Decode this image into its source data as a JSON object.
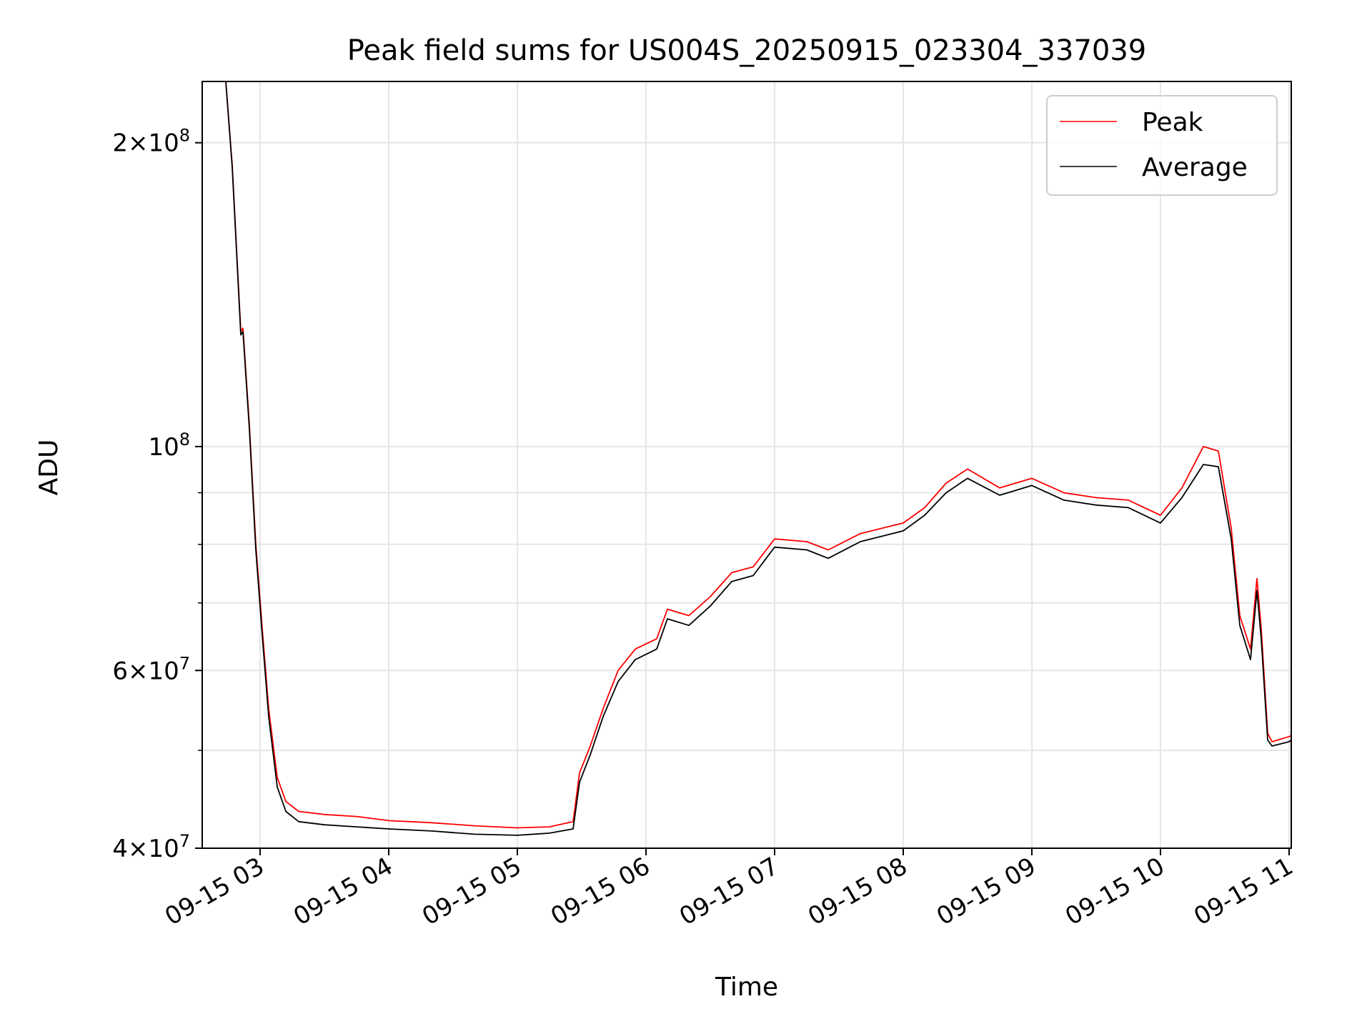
{
  "chart_data": {
    "type": "line",
    "title": "Peak field sums for US004S_20250915_023304_337039",
    "xlabel": "Time",
    "ylabel": "ADU",
    "y_scale": "log",
    "grid": true,
    "legend_position": "top-right",
    "xlim": [
      "2025-09-15 02:33",
      "2025-09-15 11:01"
    ],
    "ylim": [
      40000000,
      230000000
    ],
    "x_ticks": [
      {
        "t": "2025-09-15 03:00",
        "label": "09-15 03"
      },
      {
        "t": "2025-09-15 04:00",
        "label": "09-15 04"
      },
      {
        "t": "2025-09-15 05:00",
        "label": "09-15 05"
      },
      {
        "t": "2025-09-15 06:00",
        "label": "09-15 06"
      },
      {
        "t": "2025-09-15 07:00",
        "label": "09-15 07"
      },
      {
        "t": "2025-09-15 08:00",
        "label": "09-15 08"
      },
      {
        "t": "2025-09-15 09:00",
        "label": "09-15 09"
      },
      {
        "t": "2025-09-15 10:00",
        "label": "09-15 10"
      },
      {
        "t": "2025-09-15 11:00",
        "label": "09-15 11"
      }
    ],
    "y_ticks_major": [
      {
        "v": 40000000,
        "mant": "4",
        "exp": "7"
      },
      {
        "v": 60000000,
        "mant": "6",
        "exp": "7"
      },
      {
        "v": 100000000,
        "mant": "",
        "exp": "8"
      },
      {
        "v": 200000000,
        "mant": "2",
        "exp": "8"
      }
    ],
    "y_ticks_minor": [
      50000000,
      70000000,
      80000000,
      90000000
    ],
    "series": [
      {
        "name": "Peak",
        "color": "#ff0000",
        "points": [
          [
            "2025-09-15 02:33",
            230000000
          ],
          [
            "2025-09-15 02:44",
            230000000
          ],
          [
            "2025-09-15 02:47",
            190000000
          ],
          [
            "2025-09-15 02:51",
            130000000
          ],
          [
            "2025-09-15 02:52",
            131000000
          ],
          [
            "2025-09-15 02:55",
            105000000
          ],
          [
            "2025-09-15 02:58",
            80000000
          ],
          [
            "2025-09-15 03:01",
            66000000
          ],
          [
            "2025-09-15 03:04",
            55000000
          ],
          [
            "2025-09-15 03:08",
            47000000
          ],
          [
            "2025-09-15 03:12",
            44500000
          ],
          [
            "2025-09-15 03:18",
            43500000
          ],
          [
            "2025-09-15 03:30",
            43200000
          ],
          [
            "2025-09-15 03:45",
            43000000
          ],
          [
            "2025-09-15 04:00",
            42600000
          ],
          [
            "2025-09-15 04:20",
            42400000
          ],
          [
            "2025-09-15 04:40",
            42100000
          ],
          [
            "2025-09-15 05:00",
            41900000
          ],
          [
            "2025-09-15 05:15",
            42000000
          ],
          [
            "2025-09-15 05:26",
            42500000
          ],
          [
            "2025-09-15 05:29",
            47500000
          ],
          [
            "2025-09-15 05:34",
            50500000
          ],
          [
            "2025-09-15 05:40",
            55000000
          ],
          [
            "2025-09-15 05:47",
            60000000
          ],
          [
            "2025-09-15 05:55",
            63000000
          ],
          [
            "2025-09-15 06:05",
            64500000
          ],
          [
            "2025-09-15 06:10",
            69000000
          ],
          [
            "2025-09-15 06:20",
            68000000
          ],
          [
            "2025-09-15 06:30",
            71000000
          ],
          [
            "2025-09-15 06:40",
            75000000
          ],
          [
            "2025-09-15 06:50",
            76000000
          ],
          [
            "2025-09-15 07:00",
            81000000
          ],
          [
            "2025-09-15 07:15",
            80500000
          ],
          [
            "2025-09-15 07:25",
            79000000
          ],
          [
            "2025-09-15 07:40",
            82000000
          ],
          [
            "2025-09-15 08:00",
            84000000
          ],
          [
            "2025-09-15 08:10",
            87000000
          ],
          [
            "2025-09-15 08:20",
            92000000
          ],
          [
            "2025-09-15 08:30",
            95000000
          ],
          [
            "2025-09-15 08:45",
            91000000
          ],
          [
            "2025-09-15 09:00",
            93000000
          ],
          [
            "2025-09-15 09:15",
            90000000
          ],
          [
            "2025-09-15 09:30",
            89000000
          ],
          [
            "2025-09-15 09:45",
            88500000
          ],
          [
            "2025-09-15 10:00",
            85500000
          ],
          [
            "2025-09-15 10:10",
            91000000
          ],
          [
            "2025-09-15 10:20",
            100000000
          ],
          [
            "2025-09-15 10:27",
            99000000
          ],
          [
            "2025-09-15 10:33",
            83000000
          ],
          [
            "2025-09-15 10:37",
            68000000
          ],
          [
            "2025-09-15 10:42",
            63000000
          ],
          [
            "2025-09-15 10:45",
            74000000
          ],
          [
            "2025-09-15 10:47",
            66000000
          ],
          [
            "2025-09-15 10:50",
            52000000
          ],
          [
            "2025-09-15 10:52",
            51000000
          ],
          [
            "2025-09-15 11:00",
            51600000
          ],
          [
            "2025-09-15 11:01",
            51700000
          ]
        ]
      },
      {
        "name": "Average",
        "color": "#000000",
        "points": [
          [
            "2025-09-15 02:33",
            230000000
          ],
          [
            "2025-09-15 02:44",
            230000000
          ],
          [
            "2025-09-15 02:47",
            189000000
          ],
          [
            "2025-09-15 02:51",
            129000000
          ],
          [
            "2025-09-15 02:52",
            130000000
          ],
          [
            "2025-09-15 02:55",
            104000000
          ],
          [
            "2025-09-15 02:58",
            79000000
          ],
          [
            "2025-09-15 03:01",
            65000000
          ],
          [
            "2025-09-15 03:04",
            54000000
          ],
          [
            "2025-09-15 03:08",
            46000000
          ],
          [
            "2025-09-15 03:12",
            43500000
          ],
          [
            "2025-09-15 03:18",
            42500000
          ],
          [
            "2025-09-15 03:30",
            42200000
          ],
          [
            "2025-09-15 03:45",
            42000000
          ],
          [
            "2025-09-15 04:00",
            41800000
          ],
          [
            "2025-09-15 04:20",
            41600000
          ],
          [
            "2025-09-15 04:40",
            41300000
          ],
          [
            "2025-09-15 05:00",
            41200000
          ],
          [
            "2025-09-15 05:15",
            41400000
          ],
          [
            "2025-09-15 05:26",
            41800000
          ],
          [
            "2025-09-15 05:29",
            46500000
          ],
          [
            "2025-09-15 05:34",
            49500000
          ],
          [
            "2025-09-15 05:40",
            54000000
          ],
          [
            "2025-09-15 05:47",
            58500000
          ],
          [
            "2025-09-15 05:55",
            61500000
          ],
          [
            "2025-09-15 06:05",
            63000000
          ],
          [
            "2025-09-15 06:10",
            67500000
          ],
          [
            "2025-09-15 06:20",
            66500000
          ],
          [
            "2025-09-15 06:30",
            69500000
          ],
          [
            "2025-09-15 06:40",
            73500000
          ],
          [
            "2025-09-15 06:50",
            74500000
          ],
          [
            "2025-09-15 07:00",
            79500000
          ],
          [
            "2025-09-15 07:15",
            79000000
          ],
          [
            "2025-09-15 07:25",
            77500000
          ],
          [
            "2025-09-15 07:40",
            80500000
          ],
          [
            "2025-09-15 08:00",
            82500000
          ],
          [
            "2025-09-15 08:10",
            85500000
          ],
          [
            "2025-09-15 08:20",
            90000000
          ],
          [
            "2025-09-15 08:30",
            93000000
          ],
          [
            "2025-09-15 08:45",
            89500000
          ],
          [
            "2025-09-15 09:00",
            91500000
          ],
          [
            "2025-09-15 09:15",
            88500000
          ],
          [
            "2025-09-15 09:30",
            87500000
          ],
          [
            "2025-09-15 09:45",
            87000000
          ],
          [
            "2025-09-15 10:00",
            84000000
          ],
          [
            "2025-09-15 10:10",
            89000000
          ],
          [
            "2025-09-15 10:20",
            96000000
          ],
          [
            "2025-09-15 10:27",
            95500000
          ],
          [
            "2025-09-15 10:33",
            81000000
          ],
          [
            "2025-09-15 10:37",
            66500000
          ],
          [
            "2025-09-15 10:42",
            61500000
          ],
          [
            "2025-09-15 10:45",
            72000000
          ],
          [
            "2025-09-15 10:47",
            64500000
          ],
          [
            "2025-09-15 10:50",
            51200000
          ],
          [
            "2025-09-15 10:52",
            50500000
          ],
          [
            "2025-09-15 11:00",
            51000000
          ],
          [
            "2025-09-15 11:01",
            51200000
          ]
        ]
      }
    ]
  }
}
